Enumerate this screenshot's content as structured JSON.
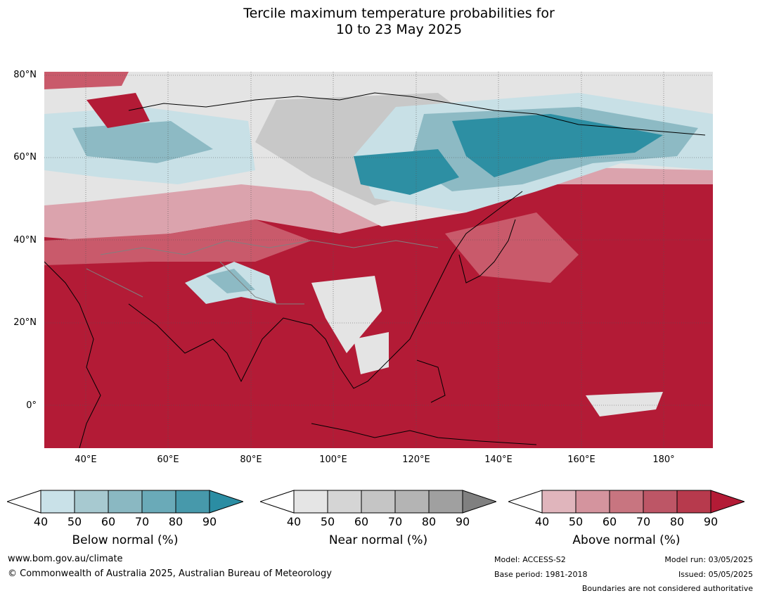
{
  "title": {
    "line1": "Tercile maximum temperature probabilities for",
    "line2": "10 to 23 May 2025"
  },
  "map": {
    "lat_labels": [
      "80°N",
      "60°N",
      "40°N",
      "20°N",
      "0°"
    ],
    "lon_labels": [
      "40°E",
      "60°E",
      "80°E",
      "100°E",
      "120°E",
      "140°E",
      "160°E",
      "180°"
    ],
    "colors": {
      "ocean_above": "#b31b36",
      "above_mid": "#c95a6b",
      "above_light": "#dba3ad",
      "near_light": "#e4e4e4",
      "near_mid": "#c8c8c8",
      "below_light": "#c8e0e6",
      "below_mid": "#8dbac4",
      "below_dark": "#2d8fa3",
      "coast": "#000000",
      "border": "#808080"
    }
  },
  "colorbars": [
    {
      "name": "below",
      "title": "Below normal (%)",
      "ticks": [
        "40",
        "50",
        "60",
        "70",
        "80",
        "90"
      ],
      "colors": [
        "#ffffff",
        "#c9e1e8",
        "#a7c9d0",
        "#8ab8c2",
        "#6aaab8",
        "#4799ab",
        "#2b8da3"
      ]
    },
    {
      "name": "near",
      "title": "Near normal (%)",
      "ticks": [
        "40",
        "50",
        "60",
        "70",
        "80",
        "90"
      ],
      "colors": [
        "#ffffff",
        "#e5e5e5",
        "#d5d5d5",
        "#c5c5c5",
        "#b4b4b4",
        "#a0a0a0",
        "#808080"
      ]
    },
    {
      "name": "above",
      "title": "Above normal (%)",
      "ticks": [
        "40",
        "50",
        "60",
        "70",
        "80",
        "90"
      ],
      "colors": [
        "#ffffff",
        "#e0b5bc",
        "#d4949e",
        "#c87580",
        "#bd5666",
        "#b73a4d",
        "#b31b36"
      ]
    }
  ],
  "footer": {
    "website": "www.bom.gov.au/climate",
    "copyright": "© Commonwealth of Australia 2025, Australian Bureau of Meteorology",
    "model": "Model: ACCESS-S2",
    "base_period": "Base period: 1981-2018",
    "model_run": "Model run: 03/05/2025",
    "issued": "Issued: 05/05/2025",
    "disclaimer": "Boundaries are not considered authoritative"
  }
}
